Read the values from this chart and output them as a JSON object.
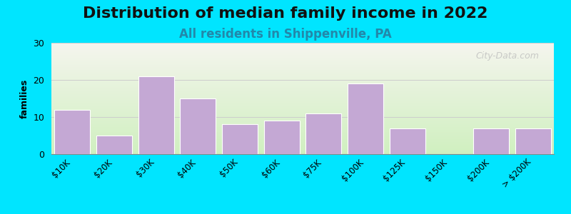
{
  "title": "Distribution of median family income in 2022",
  "subtitle": "All residents in Shippenville, PA",
  "categories": [
    "$10K",
    "$20K",
    "$30K",
    "$40K",
    "$50K",
    "$60K",
    "$75K",
    "$100K",
    "$125K",
    "$150K",
    "$200K",
    "> $200K"
  ],
  "values": [
    12,
    5,
    21,
    15,
    8,
    9,
    11,
    19,
    7,
    0,
    7,
    7
  ],
  "bar_color": "#c4a8d4",
  "bar_edgecolor": "#ffffff",
  "ylabel": "families",
  "ylim": [
    0,
    30
  ],
  "yticks": [
    0,
    10,
    20,
    30
  ],
  "background_top": "#f5f5ee",
  "background_bottom": "#d0f0c0",
  "outer_bg": "#00e5ff",
  "title_fontsize": 16,
  "subtitle_fontsize": 12,
  "subtitle_color": "#2288aa",
  "watermark": "City-Data.com",
  "grid_color": "#cccccc"
}
